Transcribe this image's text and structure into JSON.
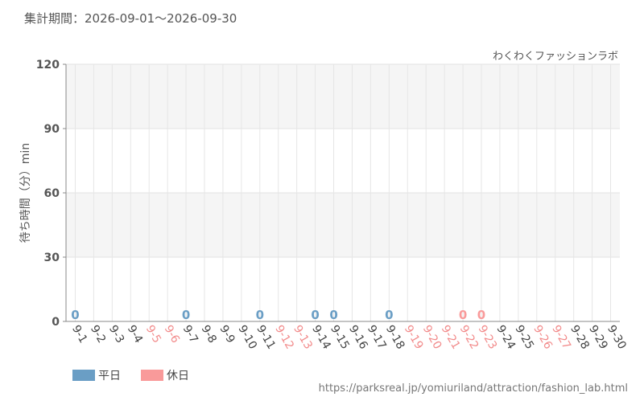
{
  "chart_data": {
    "type": "bar",
    "title": "集計期間：2026-09-01～2026-09-30",
    "subtitle": "わくわくファッションラボ",
    "y_label": "待ち時間（分）min",
    "source": "https://parksreal.jp/yomiuriland/attraction/fashion_lab.html",
    "categories": [
      "9-1",
      "9-2",
      "9-3",
      "9-4",
      "9-5",
      "9-6",
      "9-7",
      "9-8",
      "9-9",
      "9-10",
      "9-11",
      "9-12",
      "9-13",
      "9-14",
      "9-15",
      "9-16",
      "9-17",
      "9-18",
      "9-19",
      "9-20",
      "9-21",
      "9-22",
      "9-23",
      "9-24",
      "9-25",
      "9-26",
      "9-27",
      "9-28",
      "9-29",
      "9-30"
    ],
    "category_colors": [
      "#444",
      "#444",
      "#444",
      "#444",
      "#f28b8b",
      "#f28b8b",
      "#444",
      "#444",
      "#444",
      "#444",
      "#444",
      "#f28b8b",
      "#f28b8b",
      "#444",
      "#444",
      "#444",
      "#444",
      "#444",
      "#f28b8b",
      "#f28b8b",
      "#f28b8b",
      "#f28b8b",
      "#f28b8b",
      "#444",
      "#444",
      "#f28b8b",
      "#f28b8b",
      "#444",
      "#444",
      "#444"
    ],
    "series": [
      {
        "name": "平日",
        "color": "#6a9ec5",
        "values": [
          0,
          null,
          null,
          null,
          null,
          null,
          0,
          null,
          null,
          null,
          0,
          null,
          null,
          0,
          0,
          null,
          null,
          0,
          null,
          null,
          null,
          null,
          null,
          null,
          null,
          null,
          null,
          null,
          null,
          null
        ]
      },
      {
        "name": "休日",
        "color": "#f99a9a",
        "values": [
          null,
          null,
          null,
          null,
          null,
          null,
          null,
          null,
          null,
          null,
          null,
          null,
          null,
          null,
          null,
          null,
          null,
          null,
          null,
          null,
          null,
          0,
          0,
          null,
          null,
          null,
          null,
          null,
          null,
          null
        ]
      }
    ],
    "ylim": [
      0,
      120
    ],
    "yticks": [
      0,
      30,
      60,
      90,
      120
    ],
    "grid": true
  }
}
